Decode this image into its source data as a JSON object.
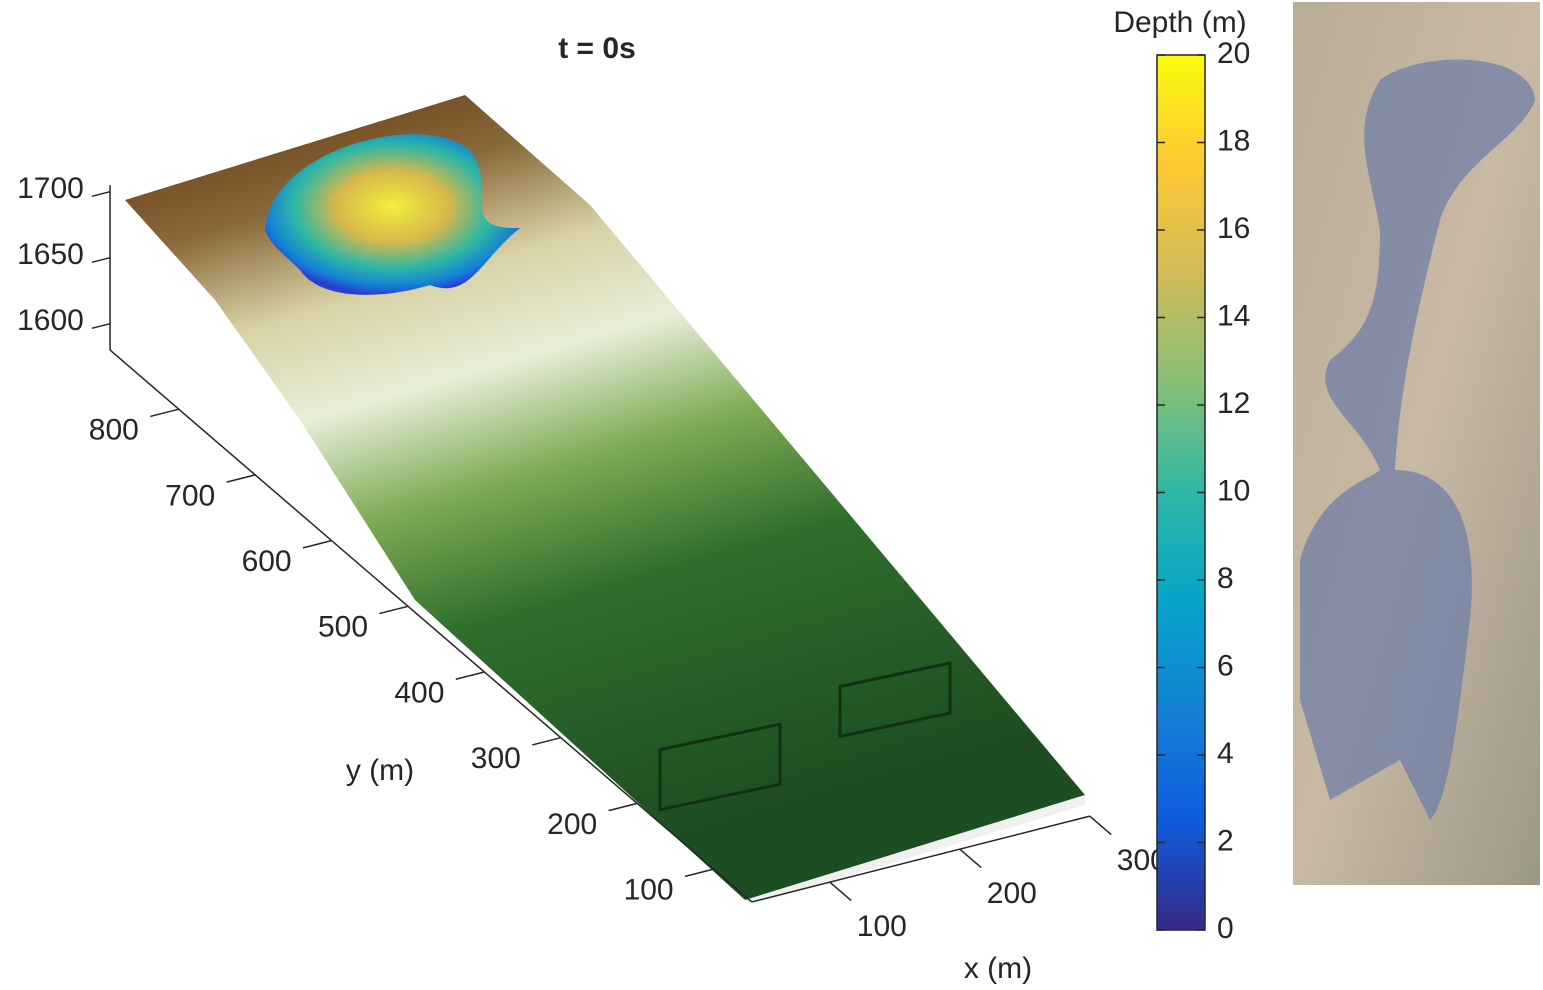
{
  "chart_data": {
    "type": "surface3d",
    "title": "t = 0s",
    "xlabel": "x (m)",
    "ylabel": "y (m)",
    "xlim": [
      40,
      300
    ],
    "xticks": [
      100,
      200,
      300
    ],
    "ylim": [
      50,
      890
    ],
    "yticks": [
      100,
      200,
      300,
      400,
      500,
      600,
      700,
      800
    ],
    "zlim": [
      1580,
      1705
    ],
    "zticks": [
      1600,
      1650,
      1700
    ],
    "colorbar": {
      "label": "Depth (m)",
      "lim": [
        0,
        20
      ],
      "ticks": [
        0,
        2,
        4,
        6,
        8,
        10,
        12,
        14,
        16,
        18,
        20
      ],
      "colormap": [
        "#352a87",
        "#0f5cdd",
        "#1481d6",
        "#06a4ca",
        "#2eb7a4",
        "#87bf77",
        "#d1bb59",
        "#fec832",
        "#f9fb0e"
      ]
    }
  }
}
